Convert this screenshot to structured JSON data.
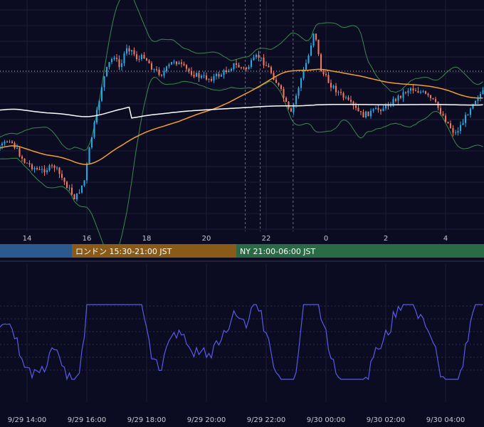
{
  "chart_data": [
    {
      "type": "candlestick",
      "x_ticks": [
        "14",
        "16",
        "18",
        "20",
        "22",
        "0",
        "2",
        "4"
      ],
      "x_hours_from_midnight_9_29": [
        14,
        16,
        18,
        20,
        22,
        24,
        26,
        28
      ],
      "grid": true,
      "reference_line_dashed": true,
      "series": [
        {
          "name": "",
          "kind": "bollinger_upper",
          "color": "#3a8a4a"
        },
        {
          "name": "",
          "kind": "bollinger_lower",
          "color": "#3a8a4a"
        },
        {
          "name": "",
          "kind": "moving_average_short",
          "color": "#f0a030"
        },
        {
          "name": "",
          "kind": "moving_average_long",
          "color": "#ffffff"
        }
      ],
      "candle_colors": {
        "up": "#29a8e0",
        "down": "#f07860"
      },
      "price_path": [
        [
          12.5,
          0.62
        ],
        [
          13.0,
          0.66
        ],
        [
          13.5,
          0.6
        ],
        [
          14.0,
          0.7
        ],
        [
          14.5,
          0.74
        ],
        [
          15.0,
          0.72
        ],
        [
          15.5,
          0.82
        ],
        [
          15.7,
          0.86
        ],
        [
          16.0,
          0.78
        ],
        [
          16.2,
          0.62
        ],
        [
          16.4,
          0.5
        ],
        [
          16.6,
          0.36
        ],
        [
          16.8,
          0.28
        ],
        [
          17.0,
          0.24
        ],
        [
          17.2,
          0.3
        ],
        [
          17.4,
          0.2
        ],
        [
          17.6,
          0.22
        ],
        [
          17.8,
          0.26
        ],
        [
          18.0,
          0.24
        ],
        [
          18.3,
          0.3
        ],
        [
          18.6,
          0.32
        ],
        [
          19.0,
          0.26
        ],
        [
          19.4,
          0.3
        ],
        [
          19.8,
          0.33
        ],
        [
          20.2,
          0.34
        ],
        [
          20.6,
          0.32
        ],
        [
          21.0,
          0.28
        ],
        [
          21.4,
          0.3
        ],
        [
          21.8,
          0.24
        ],
        [
          22.2,
          0.3
        ],
        [
          22.6,
          0.4
        ],
        [
          22.9,
          0.5
        ],
        [
          23.2,
          0.36
        ],
        [
          23.5,
          0.24
        ],
        [
          23.7,
          0.12
        ],
        [
          23.9,
          0.3
        ],
        [
          24.2,
          0.36
        ],
        [
          24.5,
          0.4
        ],
        [
          24.9,
          0.45
        ],
        [
          25.3,
          0.5
        ],
        [
          25.7,
          0.48
        ],
        [
          26.1,
          0.46
        ],
        [
          26.5,
          0.42
        ],
        [
          26.9,
          0.38
        ],
        [
          27.3,
          0.4
        ],
        [
          27.7,
          0.44
        ],
        [
          28.0,
          0.5
        ],
        [
          28.4,
          0.58
        ],
        [
          28.7,
          0.52
        ],
        [
          29.0,
          0.44
        ],
        [
          29.3,
          0.4
        ]
      ]
    },
    {
      "type": "line",
      "name": "oscillator",
      "color": "#5a5ae8",
      "grid": true,
      "x_ticks": [
        "9/29 14:00",
        "9/29 16:00",
        "9/29 18:00",
        "9/29 20:00",
        "9/29 22:00",
        "9/30 00:00",
        "9/30 02:00",
        "9/30 04:00"
      ],
      "x_hours_from_midnight_9_29": [
        14,
        16,
        18,
        20,
        22,
        24,
        26,
        28
      ]
    }
  ],
  "sessions": [
    {
      "label": "",
      "color": "#2a5a90",
      "start_hour": 12.5,
      "end_hour": 15.5
    },
    {
      "label": "ロンドン 15:30-21:00 JST",
      "color": "#8a5a18",
      "start_hour": 15.5,
      "end_hour": 21.0
    },
    {
      "label": "NY 21:00-06:00 JST",
      "color": "#2a6a45",
      "start_hour": 21.0,
      "end_hour": 30.0
    }
  ]
}
